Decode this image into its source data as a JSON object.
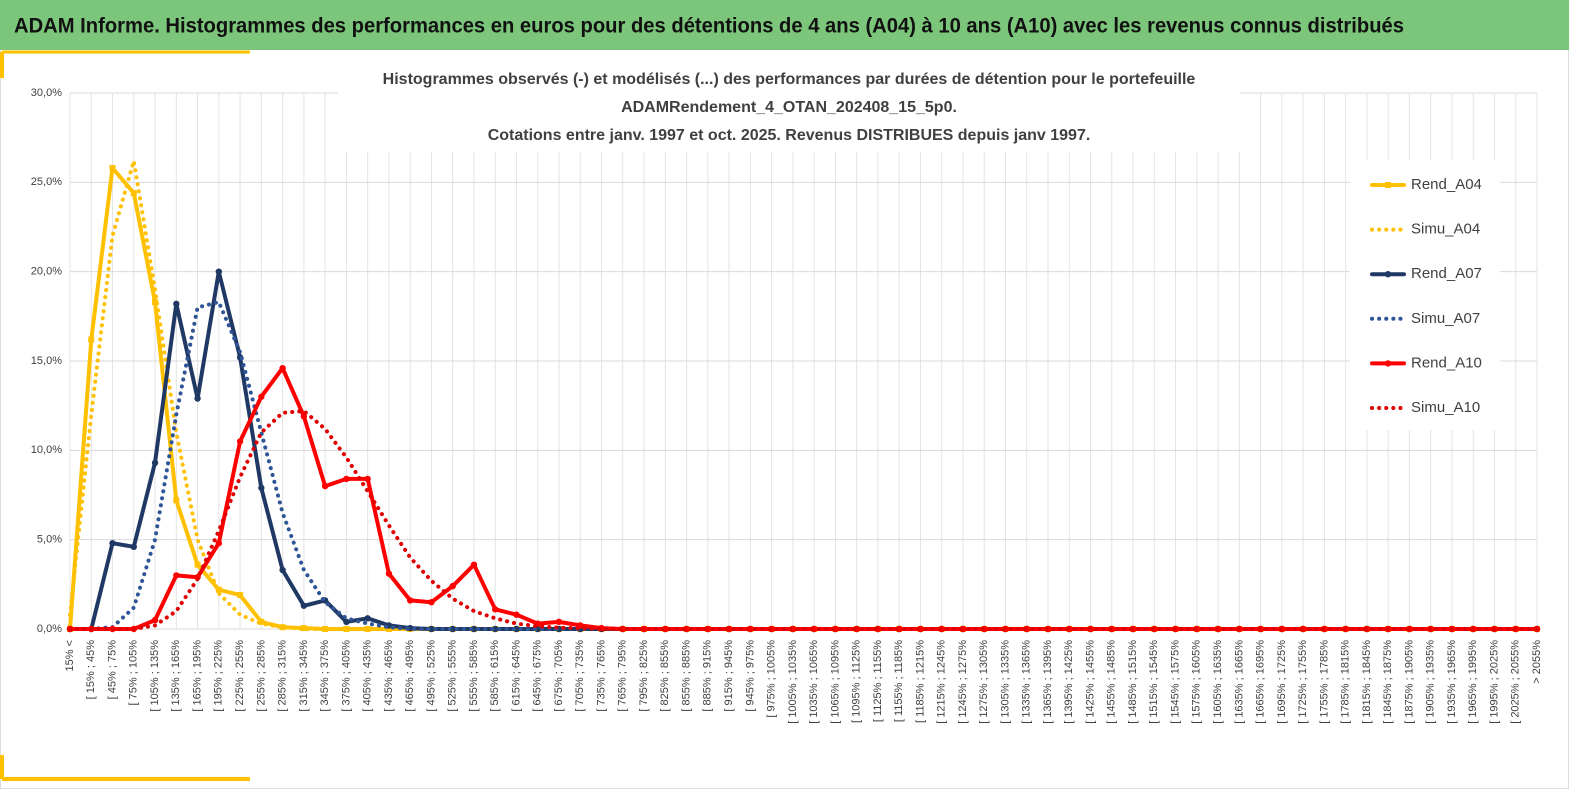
{
  "header": {
    "title": "ADAM Informe. Histogrammes des performances en euros pour des détentions de 4 ans (A04) à 10 ans (A10) avec les revenus connus distribués"
  },
  "chart_data": {
    "type": "line",
    "title": [
      "Histogrammes observés (-) et modélisés (...) des performances par durées de détention pour le portefeuille",
      "ADAMRendement_4_OTAN_202408_15_5p0.",
      "Cotations entre janv. 1997 et oct. 2025. Revenus DISTRIBUES depuis janv 1997."
    ],
    "categories": [
      "15% <",
      "[ 15% ; 45%",
      "[ 45% ; 75%",
      "[ 75% ; 105%",
      "[ 105% ; 135%",
      "[ 135% ; 165%",
      "[ 165% ; 195%",
      "[ 195% ; 225%",
      "[ 225% ; 255%",
      "[ 255% ; 285%",
      "[ 285% ; 315%",
      "[ 315% ; 345%",
      "[ 345% ; 375%",
      "[ 375% ; 405%",
      "[ 405% ; 435%",
      "[ 435% ; 465%",
      "[ 465% ; 495%",
      "[ 495% ; 525%",
      "[ 525% ; 555%",
      "[ 555% ; 585%",
      "[ 585% ; 615%",
      "[ 615% ; 645%",
      "[ 645% ; 675%",
      "[ 675% ; 705%",
      "[ 705% ; 735%",
      "[ 735% ; 765%",
      "[ 765% ; 795%",
      "[ 795% ; 825%",
      "[ 825% ; 855%",
      "[ 855% ; 885%",
      "[ 885% ; 915%",
      "[ 915% ; 945%",
      "[ 945% ; 975%",
      "[ 975% ; 1005%",
      "[ 1005% ; 1035%",
      "[ 1035% ; 1065%",
      "[ 1065% ; 1095%",
      "[ 1095% ; 1125%",
      "[ 1125% ; 1155%",
      "[ 1155% ; 1185%",
      "[ 1185% ; 1215%",
      "[ 1215% ; 1245%",
      "[ 1245% ; 1275%",
      "[ 1275% ; 1305%",
      "[ 1305% ; 1335%",
      "[ 1335% ; 1365%",
      "[ 1365% ; 1395%",
      "[ 1395% ; 1425%",
      "[ 1425% ; 1455%",
      "[ 1455% ; 1485%",
      "[ 1485% ; 1515%",
      "[ 1515% ; 1545%",
      "[ 1545% ; 1575%",
      "[ 1575% ; 1605%",
      "[ 1605% ; 1635%",
      "[ 1635% ; 1665%",
      "[ 1665% ; 1695%",
      "[ 1695% ; 1725%",
      "[ 1725% ; 1755%",
      "[ 1755% ; 1785%",
      "[ 1785% ; 1815%",
      "[ 1815% ; 1845%",
      "[ 1845% ; 1875%",
      "[ 1875% ; 1905%",
      "[ 1905% ; 1935%",
      "[ 1935% ; 1965%",
      "[ 1965% ; 1995%",
      "[ 1995% ; 2025%",
      "[ 2025% ; 2055%",
      "> 2055%"
    ],
    "series": [
      {
        "name": "Rend_A04",
        "color": "#ffc000",
        "style": "solid",
        "marker": "square",
        "values": [
          0,
          16.2,
          25.8,
          24.4,
          18.3,
          7.2,
          3.6,
          2.2,
          1.9,
          0.4,
          0.1,
          0.05,
          0,
          0,
          0,
          0,
          0,
          0,
          0,
          0,
          0,
          0,
          0,
          0,
          0,
          0,
          0,
          0,
          0,
          0,
          0,
          0,
          0,
          0,
          0,
          0,
          0,
          0,
          0,
          0,
          0,
          0,
          0,
          0,
          0,
          0,
          0,
          0,
          0,
          0,
          0,
          0,
          0,
          0,
          0,
          0,
          0,
          0,
          0,
          0,
          0,
          0,
          0,
          0,
          0,
          0,
          0,
          0,
          0,
          0
        ]
      },
      {
        "name": "Simu_A04",
        "color": "#ffc000",
        "style": "dotted",
        "marker": "none",
        "values": [
          0.8,
          12,
          22,
          26.2,
          19,
          11,
          5,
          2,
          0.8,
          0.3,
          0.1,
          0,
          0,
          0,
          0,
          0,
          0,
          0,
          0,
          0,
          0,
          0,
          0,
          0,
          0,
          0,
          0,
          0,
          0,
          0,
          0,
          0,
          0,
          0,
          0,
          0,
          0,
          0,
          0,
          0,
          0,
          0,
          0,
          0,
          0,
          0,
          0,
          0,
          0,
          0,
          0,
          0,
          0,
          0,
          0,
          0,
          0,
          0,
          0,
          0,
          0,
          0,
          0,
          0,
          0,
          0,
          0,
          0,
          0,
          0
        ]
      },
      {
        "name": "Rend_A07",
        "color": "#1f3864",
        "style": "solid",
        "marker": "circle",
        "values": [
          0,
          0,
          4.8,
          4.6,
          9.3,
          18.2,
          12.9,
          20.0,
          15.2,
          7.9,
          3.3,
          1.3,
          1.6,
          0.4,
          0.6,
          0.2,
          0.05,
          0,
          0,
          0,
          0,
          0,
          0,
          0,
          0,
          0,
          0,
          0,
          0,
          0,
          0,
          0,
          0,
          0,
          0,
          0,
          0,
          0,
          0,
          0,
          0,
          0,
          0,
          0,
          0,
          0,
          0,
          0,
          0,
          0,
          0,
          0,
          0,
          0,
          0,
          0,
          0,
          0,
          0,
          0,
          0,
          0,
          0,
          0,
          0,
          0,
          0,
          0,
          0,
          0
        ]
      },
      {
        "name": "Simu_A07",
        "color": "#2f5597",
        "style": "dotted",
        "marker": "none",
        "values": [
          0,
          0,
          0.1,
          1.2,
          5,
          12,
          18,
          18.3,
          15.5,
          11,
          6.5,
          3.3,
          1.5,
          0.6,
          0.3,
          0.1,
          0,
          0,
          0,
          0,
          0,
          0,
          0,
          0,
          0,
          0,
          0,
          0,
          0,
          0,
          0,
          0,
          0,
          0,
          0,
          0,
          0,
          0,
          0,
          0,
          0,
          0,
          0,
          0,
          0,
          0,
          0,
          0,
          0,
          0,
          0,
          0,
          0,
          0,
          0,
          0,
          0,
          0,
          0,
          0,
          0,
          0,
          0,
          0,
          0,
          0,
          0,
          0,
          0,
          0
        ]
      },
      {
        "name": "Rend_A10",
        "color": "#ff0000",
        "style": "solid",
        "marker": "circle",
        "values": [
          0,
          0,
          0,
          0,
          0.5,
          3.0,
          2.9,
          4.8,
          10.5,
          13.0,
          14.6,
          11.9,
          8.0,
          8.4,
          8.4,
          3.1,
          1.6,
          1.5,
          2.4,
          3.6,
          1.1,
          0.8,
          0.3,
          0.4,
          0.2,
          0.05,
          0,
          0,
          0,
          0,
          0,
          0,
          0,
          0,
          0,
          0,
          0,
          0,
          0,
          0,
          0,
          0,
          0,
          0,
          0,
          0,
          0,
          0,
          0,
          0,
          0,
          0,
          0,
          0,
          0,
          0,
          0,
          0,
          0,
          0,
          0,
          0,
          0,
          0,
          0,
          0,
          0,
          0,
          0,
          0
        ]
      },
      {
        "name": "Simu_A10",
        "color": "#e00000",
        "style": "dotted",
        "marker": "none",
        "values": [
          0,
          0,
          0,
          0,
          0.2,
          1.0,
          2.8,
          5.5,
          8.5,
          11,
          12.1,
          12.2,
          11.2,
          9.6,
          7.7,
          5.8,
          4.0,
          2.7,
          1.7,
          1.0,
          0.6,
          0.3,
          0.15,
          0.08,
          0.04,
          0,
          0,
          0,
          0,
          0,
          0,
          0,
          0,
          0,
          0,
          0,
          0,
          0,
          0,
          0,
          0,
          0,
          0,
          0,
          0,
          0,
          0,
          0,
          0,
          0,
          0,
          0,
          0,
          0,
          0,
          0,
          0,
          0,
          0,
          0,
          0,
          0,
          0,
          0,
          0,
          0,
          0,
          0,
          0,
          0
        ]
      }
    ],
    "ylim": [
      0,
      30
    ],
    "yticks": [
      {
        "value": 0,
        "label": "0,0%"
      },
      {
        "value": 5,
        "label": "5,0%"
      },
      {
        "value": 10,
        "label": "10,0%"
      },
      {
        "value": 15,
        "label": "15,0%"
      },
      {
        "value": 20,
        "label": "20,0%"
      },
      {
        "value": 25,
        "label": "25,0%"
      },
      {
        "value": 30,
        "label": "30,0%"
      }
    ],
    "grid": true,
    "legend": "right"
  }
}
